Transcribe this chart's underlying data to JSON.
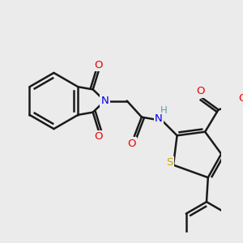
{
  "background_color": "#ebebeb",
  "bond_color": "#1a1a1a",
  "atom_colors": {
    "N": "#0000ee",
    "O": "#ee0000",
    "S": "#ccaa00",
    "H": "#5f9ea0",
    "C": "#1a1a1a"
  },
  "figsize": [
    3.0,
    3.0
  ],
  "dpi": 100
}
